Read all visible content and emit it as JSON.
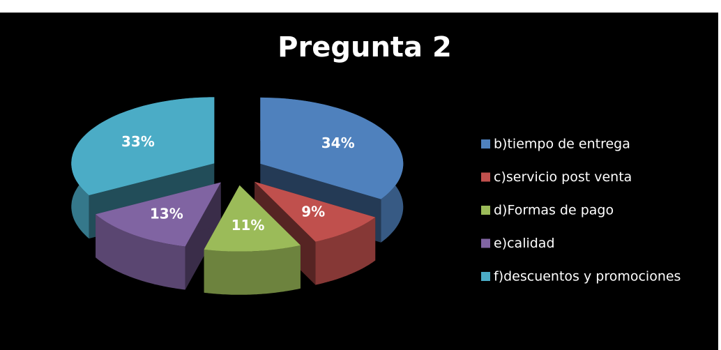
{
  "chart_data": {
    "type": "pie",
    "title": "Pregunta 2",
    "categories": [
      "b)tiempo de entrega",
      "c)servicio post venta",
      "d)Formas de pago",
      "e)calidad",
      "f)descuentos y promociones"
    ],
    "values": [
      34,
      9,
      11,
      13,
      33
    ],
    "value_labels": [
      "34%",
      "9%",
      "11%",
      "13%",
      "33%"
    ],
    "colors": [
      "#4f81bd",
      "#c0504d",
      "#9bbb59",
      "#8064a2",
      "#4bacc6"
    ],
    "legend": "right"
  }
}
